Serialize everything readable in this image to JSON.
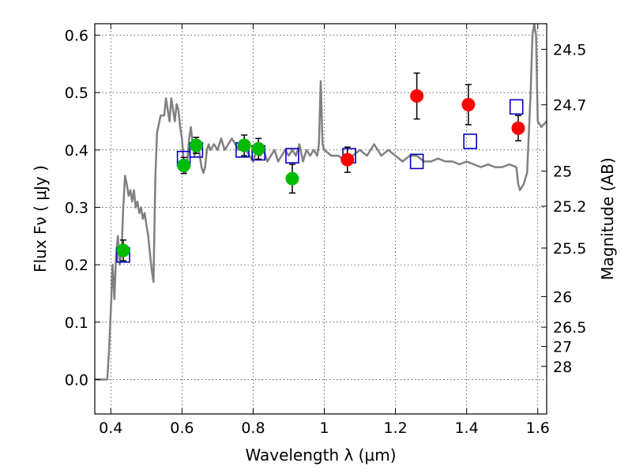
{
  "chart_data": {
    "type": "scatter",
    "xlabel": "Wavelength  λ (μm)",
    "ylabel": "Flux  Fν  ( μJy )",
    "y2label": "Magnitude (AB)",
    "xlim": [
      0.355,
      1.625
    ],
    "ylim": [
      -0.06,
      0.62
    ],
    "grid": true,
    "x_ticks": [
      {
        "value": 0.4,
        "label": "0.4"
      },
      {
        "value": 0.6,
        "label": "0.6"
      },
      {
        "value": 0.8,
        "label": "0.8"
      },
      {
        "value": 1.0,
        "label": "1"
      },
      {
        "value": 1.2,
        "label": "1.2"
      },
      {
        "value": 1.4,
        "label": "1.4"
      },
      {
        "value": 1.6,
        "label": "1.6"
      }
    ],
    "y_ticks": [
      {
        "value": 0.0,
        "label": "0.0"
      },
      {
        "value": 0.1,
        "label": "0.1"
      },
      {
        "value": 0.2,
        "label": "0.2"
      },
      {
        "value": 0.3,
        "label": "0.3"
      },
      {
        "value": 0.4,
        "label": "0.4"
      },
      {
        "value": 0.5,
        "label": "0.5"
      },
      {
        "value": 0.6,
        "label": "0.6"
      }
    ],
    "y2_ticks": [
      {
        "mag": 24.5,
        "label": "24.5"
      },
      {
        "mag": 24.7,
        "label": "24.7"
      },
      {
        "mag": 25,
        "label": "25"
      },
      {
        "mag": 25.2,
        "label": "25.2"
      },
      {
        "mag": 25.5,
        "label": "25.5"
      },
      {
        "mag": 26,
        "label": "26"
      },
      {
        "mag": 26.5,
        "label": "26.5"
      },
      {
        "mag": 27,
        "label": "27"
      },
      {
        "mag": 28,
        "label": "28"
      }
    ],
    "series": [
      {
        "kind": "line",
        "color": "#808080",
        "points": [
          [
            0.355,
            0.0
          ],
          [
            0.38,
            0.0
          ],
          [
            0.39,
            0.0
          ],
          [
            0.395,
            0.05
          ],
          [
            0.4,
            0.12
          ],
          [
            0.405,
            0.2
          ],
          [
            0.41,
            0.14
          ],
          [
            0.415,
            0.22
          ],
          [
            0.42,
            0.25
          ],
          [
            0.425,
            0.2
          ],
          [
            0.43,
            0.22
          ],
          [
            0.435,
            0.3
          ],
          [
            0.44,
            0.355
          ],
          [
            0.445,
            0.34
          ],
          [
            0.45,
            0.32
          ],
          [
            0.455,
            0.33
          ],
          [
            0.46,
            0.31
          ],
          [
            0.465,
            0.33
          ],
          [
            0.47,
            0.3
          ],
          [
            0.475,
            0.31
          ],
          [
            0.48,
            0.29
          ],
          [
            0.485,
            0.3
          ],
          [
            0.49,
            0.28
          ],
          [
            0.495,
            0.29
          ],
          [
            0.5,
            0.27
          ],
          [
            0.505,
            0.25
          ],
          [
            0.51,
            0.22
          ],
          [
            0.515,
            0.19
          ],
          [
            0.52,
            0.17
          ],
          [
            0.525,
            0.35
          ],
          [
            0.53,
            0.43
          ],
          [
            0.54,
            0.46
          ],
          [
            0.55,
            0.46
          ],
          [
            0.555,
            0.49
          ],
          [
            0.56,
            0.47
          ],
          [
            0.565,
            0.45
          ],
          [
            0.57,
            0.49
          ],
          [
            0.575,
            0.47
          ],
          [
            0.58,
            0.45
          ],
          [
            0.585,
            0.48
          ],
          [
            0.59,
            0.47
          ],
          [
            0.595,
            0.44
          ],
          [
            0.6,
            0.42
          ],
          [
            0.605,
            0.38
          ],
          [
            0.61,
            0.36
          ],
          [
            0.615,
            0.38
          ],
          [
            0.62,
            0.42
          ],
          [
            0.625,
            0.44
          ],
          [
            0.63,
            0.41
          ],
          [
            0.635,
            0.39
          ],
          [
            0.64,
            0.4
          ],
          [
            0.645,
            0.41
          ],
          [
            0.65,
            0.39
          ],
          [
            0.655,
            0.37
          ],
          [
            0.66,
            0.36
          ],
          [
            0.665,
            0.37
          ],
          [
            0.67,
            0.4
          ],
          [
            0.675,
            0.41
          ],
          [
            0.68,
            0.4
          ],
          [
            0.69,
            0.41
          ],
          [
            0.7,
            0.4
          ],
          [
            0.71,
            0.42
          ],
          [
            0.72,
            0.4
          ],
          [
            0.73,
            0.41
          ],
          [
            0.74,
            0.42
          ],
          [
            0.75,
            0.41
          ],
          [
            0.76,
            0.4
          ],
          [
            0.77,
            0.41
          ],
          [
            0.78,
            0.4
          ],
          [
            0.79,
            0.39
          ],
          [
            0.8,
            0.38
          ],
          [
            0.81,
            0.4
          ],
          [
            0.82,
            0.39
          ],
          [
            0.83,
            0.4
          ],
          [
            0.84,
            0.38
          ],
          [
            0.85,
            0.39
          ],
          [
            0.86,
            0.4
          ],
          [
            0.87,
            0.38
          ],
          [
            0.88,
            0.39
          ],
          [
            0.89,
            0.4
          ],
          [
            0.9,
            0.39
          ],
          [
            0.91,
            0.4
          ],
          [
            0.92,
            0.39
          ],
          [
            0.93,
            0.41
          ],
          [
            0.94,
            0.38
          ],
          [
            0.95,
            0.4
          ],
          [
            0.96,
            0.39
          ],
          [
            0.97,
            0.4
          ],
          [
            0.98,
            0.39
          ],
          [
            0.985,
            0.41
          ],
          [
            0.99,
            0.52
          ],
          [
            0.995,
            0.41
          ],
          [
            1.0,
            0.4
          ],
          [
            1.02,
            0.39
          ],
          [
            1.04,
            0.39
          ],
          [
            1.06,
            0.38
          ],
          [
            1.08,
            0.39
          ],
          [
            1.1,
            0.4
          ],
          [
            1.12,
            0.39
          ],
          [
            1.14,
            0.41
          ],
          [
            1.16,
            0.39
          ],
          [
            1.18,
            0.4
          ],
          [
            1.2,
            0.39
          ],
          [
            1.22,
            0.38
          ],
          [
            1.24,
            0.39
          ],
          [
            1.26,
            0.39
          ],
          [
            1.28,
            0.38
          ],
          [
            1.3,
            0.38
          ],
          [
            1.32,
            0.385
          ],
          [
            1.34,
            0.38
          ],
          [
            1.36,
            0.38
          ],
          [
            1.38,
            0.375
          ],
          [
            1.4,
            0.38
          ],
          [
            1.42,
            0.375
          ],
          [
            1.44,
            0.37
          ],
          [
            1.46,
            0.375
          ],
          [
            1.48,
            0.37
          ],
          [
            1.5,
            0.37
          ],
          [
            1.52,
            0.375
          ],
          [
            1.54,
            0.37
          ],
          [
            1.545,
            0.34
          ],
          [
            1.55,
            0.33
          ],
          [
            1.56,
            0.34
          ],
          [
            1.57,
            0.36
          ],
          [
            1.58,
            0.5
          ],
          [
            1.585,
            0.6
          ],
          [
            1.59,
            0.62
          ],
          [
            1.595,
            0.6
          ],
          [
            1.6,
            0.45
          ],
          [
            1.61,
            0.44
          ],
          [
            1.625,
            0.45
          ]
        ]
      },
      {
        "kind": "open-square",
        "color": "#0000cc",
        "points": [
          [
            0.435,
            0.217
          ],
          [
            0.605,
            0.385
          ],
          [
            0.64,
            0.4
          ],
          [
            0.77,
            0.4
          ],
          [
            0.815,
            0.395
          ],
          [
            0.91,
            0.39
          ],
          [
            1.07,
            0.39
          ],
          [
            1.26,
            0.38
          ],
          [
            1.41,
            0.415
          ],
          [
            1.54,
            0.475
          ]
        ]
      },
      {
        "kind": "filled-circle",
        "color": "#00bb00",
        "points": [
          [
            0.435,
            0.225,
            0.018
          ],
          [
            0.605,
            0.373,
            0.014
          ],
          [
            0.64,
            0.408,
            0.014
          ],
          [
            0.775,
            0.408,
            0.018
          ],
          [
            0.815,
            0.402,
            0.018
          ],
          [
            0.91,
            0.35,
            0.025
          ]
        ]
      },
      {
        "kind": "filled-circle",
        "color": "#ff0000",
        "points": [
          [
            1.065,
            0.383,
            0.022
          ],
          [
            1.26,
            0.494,
            0.04
          ],
          [
            1.405,
            0.479,
            0.035
          ],
          [
            1.545,
            0.438,
            0.022
          ]
        ]
      }
    ]
  }
}
